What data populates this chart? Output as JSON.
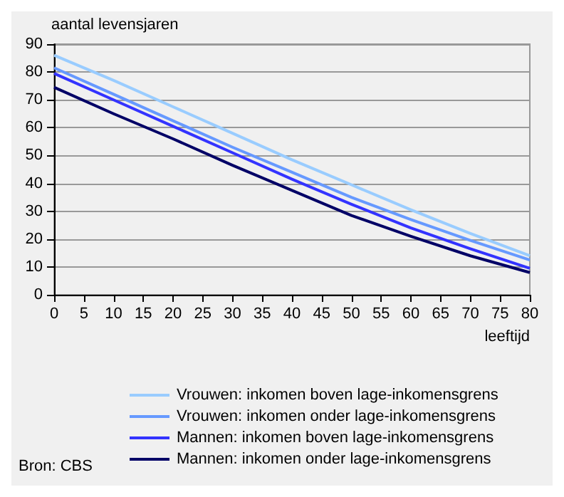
{
  "chart_data": {
    "type": "line",
    "ylabel": "aantal levensjaren",
    "xlabel": "leeftijd",
    "annotations": [
      "Bron: CBS"
    ],
    "x": [
      0,
      10,
      20,
      30,
      40,
      50,
      60,
      70,
      80
    ],
    "series": [
      {
        "name": "Vrouwen: inkomen boven lage-inkomensgrens",
        "color": "#99ccff",
        "values": [
          86,
          77,
          67.5,
          58,
          48.5,
          39.5,
          30.5,
          22,
          14
        ]
      },
      {
        "name": "Vrouwen: inkomen onder lage-inkomensgrens",
        "color": "#6699ff",
        "values": [
          81.5,
          72,
          62.5,
          53,
          44,
          35,
          27,
          19.5,
          12.5
        ]
      },
      {
        "name": "Mannen: inkomen boven lage-inkomensgrens",
        "color": "#3333ff",
        "values": [
          79.5,
          70,
          60.5,
          51,
          41.5,
          32.5,
          24,
          16.5,
          9.5
        ]
      },
      {
        "name": "Mannen: inkomen onder lage-inkomensgrens",
        "color": "#000066",
        "values": [
          74.5,
          65,
          56,
          46.5,
          37.5,
          28.5,
          21,
          14,
          8
        ]
      }
    ],
    "xlim": [
      0,
      80
    ],
    "xticks": [
      0,
      5,
      10,
      15,
      20,
      25,
      30,
      35,
      40,
      45,
      50,
      55,
      60,
      65,
      70,
      75,
      80
    ],
    "ylim": [
      0,
      90
    ],
    "yticks": [
      0,
      10,
      20,
      30,
      40,
      50,
      60,
      70,
      80,
      90
    ],
    "grid": "y",
    "legend": "bottom",
    "marker": "none",
    "line_style": "solid"
  }
}
